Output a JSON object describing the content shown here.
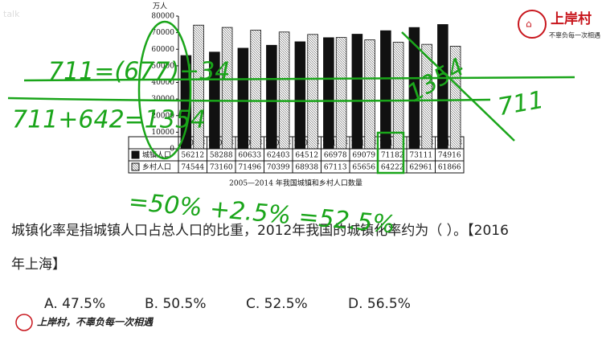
{
  "chart_data": {
    "type": "bar",
    "unit": "万人",
    "caption": "2005—2014 年我国城镇和乡村人口数量",
    "categories": [
      "2005年",
      "2006年",
      "2007年",
      "2008年",
      "2009年",
      "2010年",
      "2011年",
      "2012年",
      "2013年",
      "2014年"
    ],
    "series": [
      {
        "name": "城镇人口",
        "color": "#111111",
        "values": [
          56212,
          58288,
          60633,
          62403,
          64512,
          66978,
          69079,
          71182,
          73111,
          74916
        ]
      },
      {
        "name": "乡村人口",
        "color": "#ffffff",
        "values": [
          74544,
          73160,
          71496,
          70399,
          68938,
          67113,
          65656,
          64222,
          62961,
          61866
        ]
      }
    ],
    "ylim": [
      0,
      80000
    ],
    "yticks": [
      0,
      10000,
      20000,
      30000,
      40000,
      50000,
      60000,
      70000,
      80000
    ]
  },
  "annotations": [
    "711=(677)+34",
    "711+642=1354",
    "1354",
    "711",
    "=50% +2.5% =52.5%"
  ],
  "question_lines": [
    "城镇化率是指城镇人口占总人口的比重，2012年我国的城镇化率约为（ ）。【2016",
    "年上海】"
  ],
  "options": [
    "A. 47.5%",
    "B. 50.5%",
    "C. 52.5%",
    "D. 56.5%"
  ],
  "logo": {
    "name": "上岸村",
    "slogan": "不辜负每一次相遇"
  },
  "footer": "上岸村，不辜负每一次相遇",
  "watermark": "talk"
}
